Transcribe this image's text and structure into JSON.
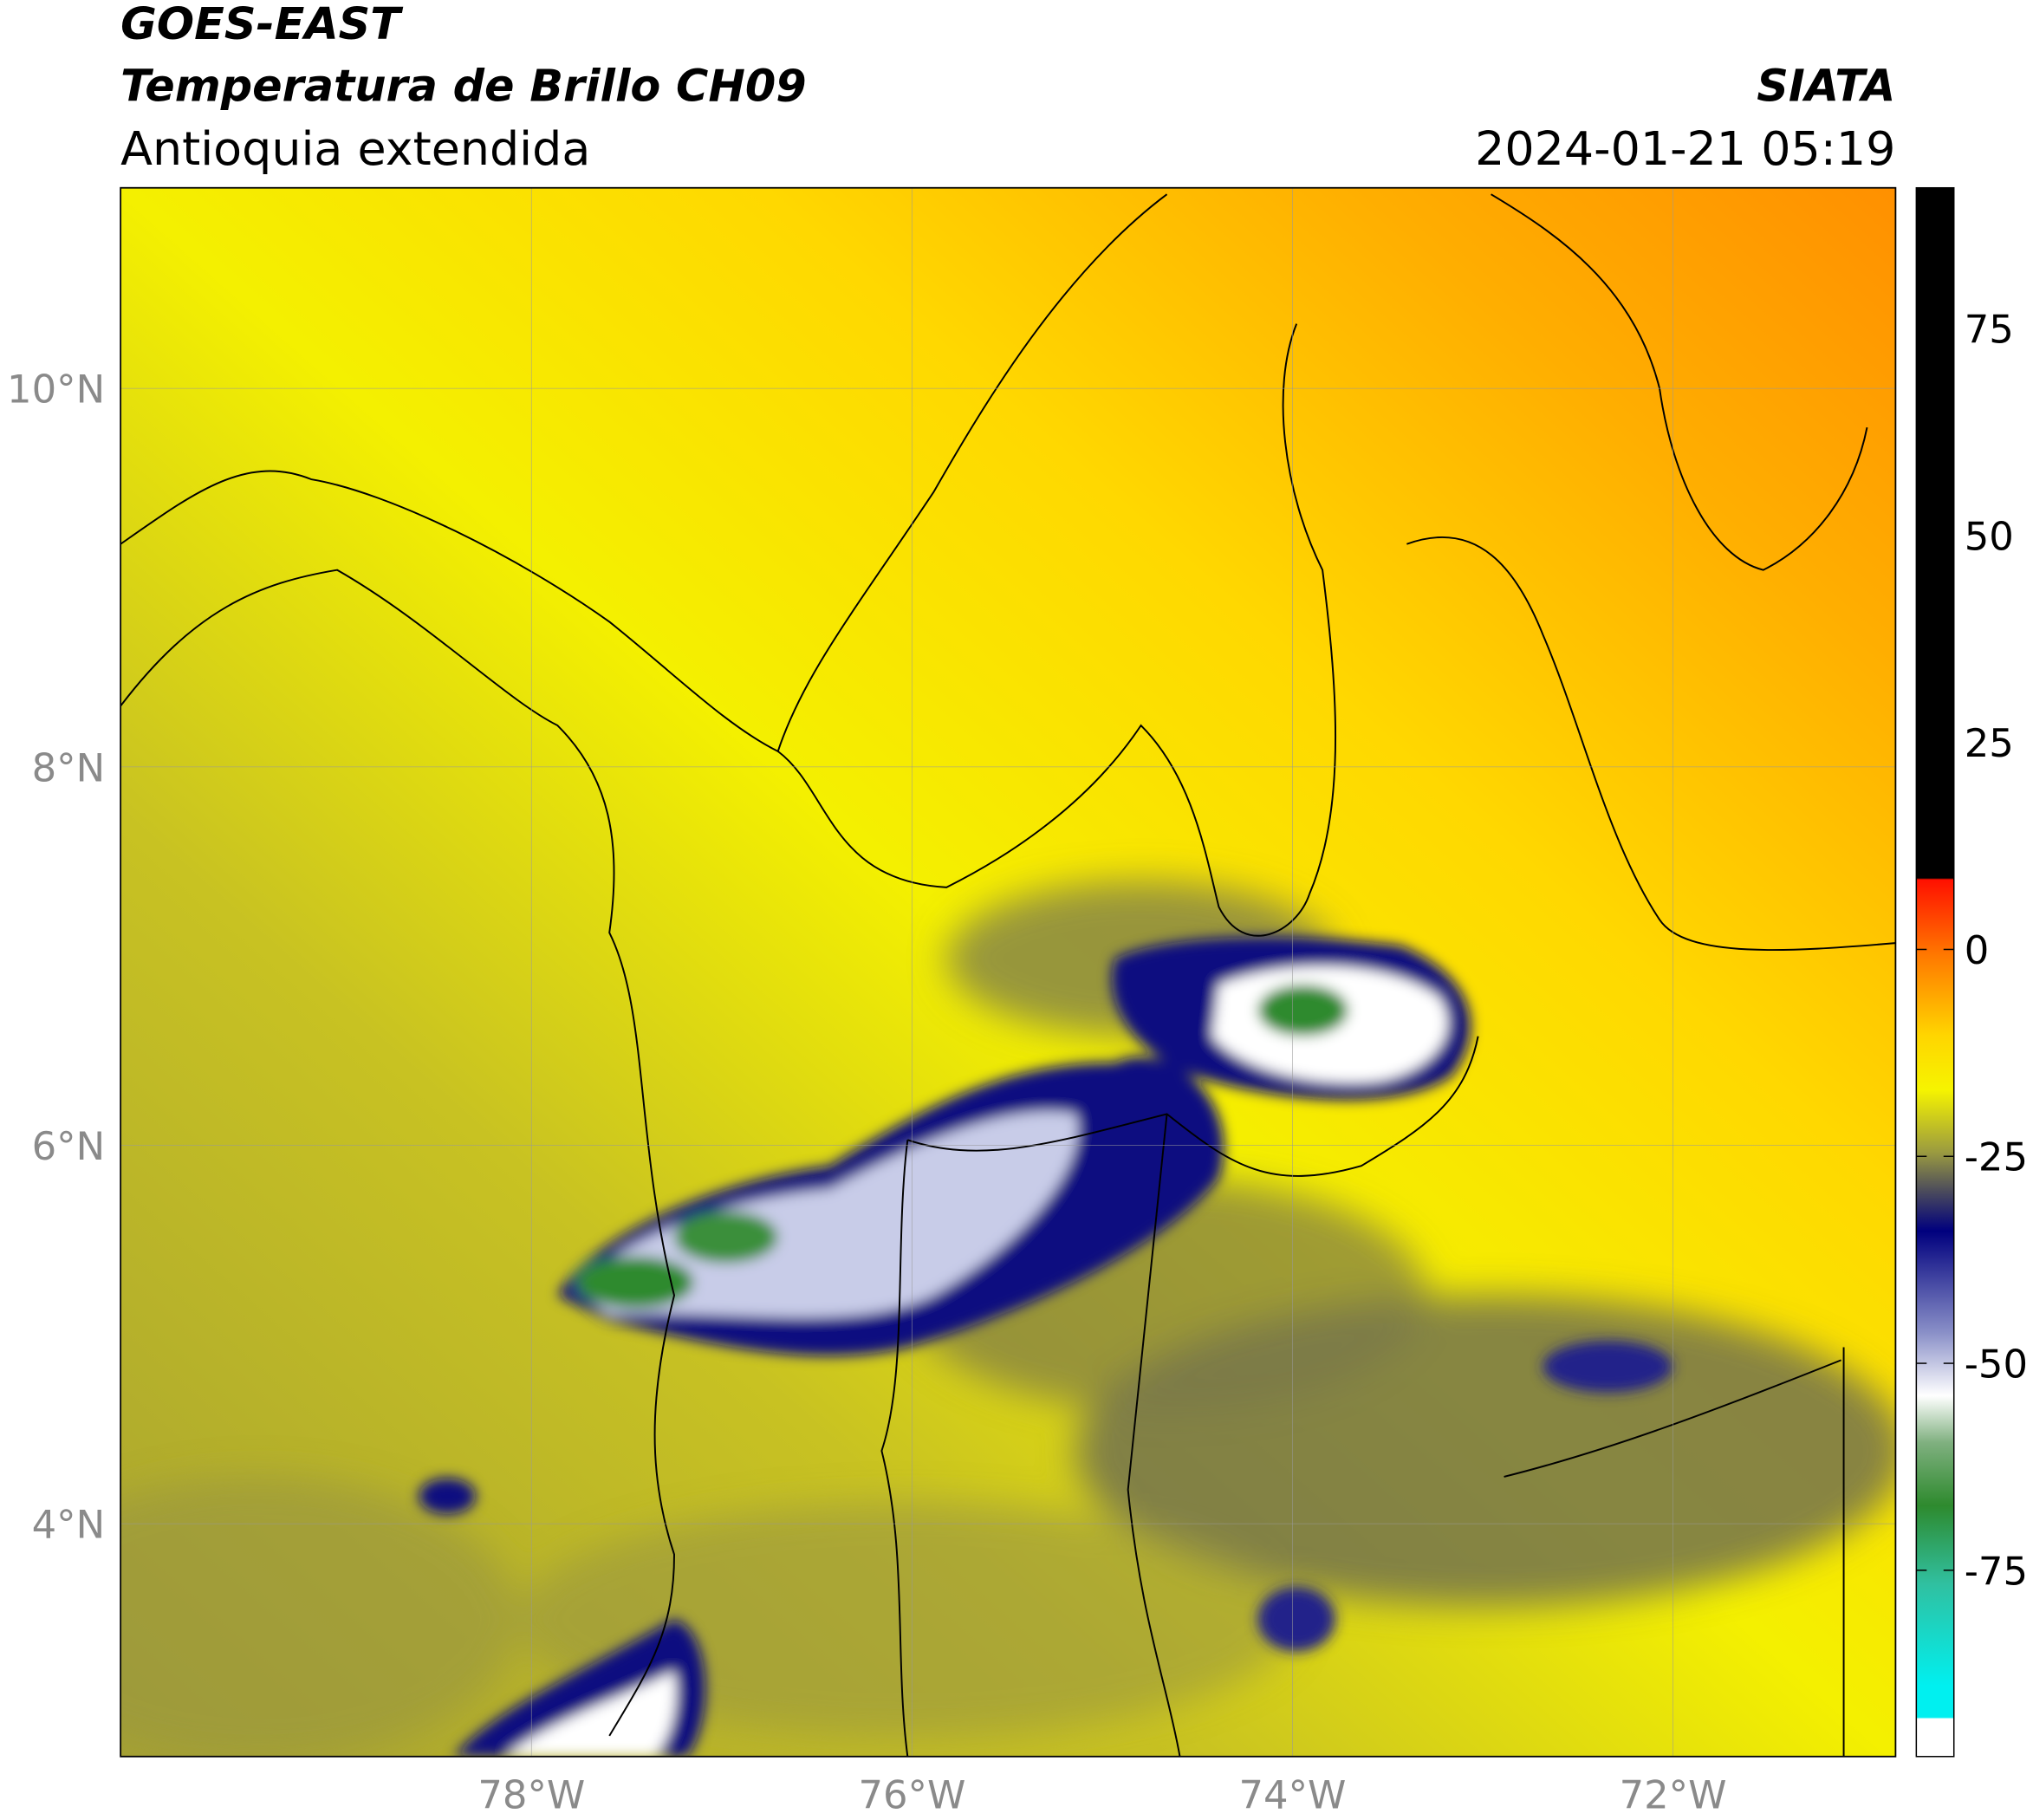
{
  "header": {
    "title": "GOES-EAST",
    "subtitle": "Temperatura de Brillo CH09",
    "region": "Antioquia extendida",
    "source": "SIATA",
    "timestamp": "2024-01-21 05:19"
  },
  "map": {
    "lonlim": [
      -80.16,
      -70.83
    ],
    "latlim": [
      2.77,
      11.06
    ],
    "grid": true,
    "lon_ticks": [
      {
        "value": -78,
        "label": "78°W"
      },
      {
        "value": -76,
        "label": "76°W"
      },
      {
        "value": -74,
        "label": "74°W"
      },
      {
        "value": -72,
        "label": "72°W"
      }
    ],
    "lat_ticks": [
      {
        "value": 10,
        "label": "10°N"
      },
      {
        "value": 8,
        "label": "8°N"
      },
      {
        "value": 6,
        "label": "6°N"
      },
      {
        "value": 4,
        "label": "4°N"
      }
    ]
  },
  "colorbar": {
    "range": [
      -97.5,
      92
    ],
    "ticks": [
      75,
      50,
      25,
      0,
      -25,
      -50,
      -75
    ]
  }
}
